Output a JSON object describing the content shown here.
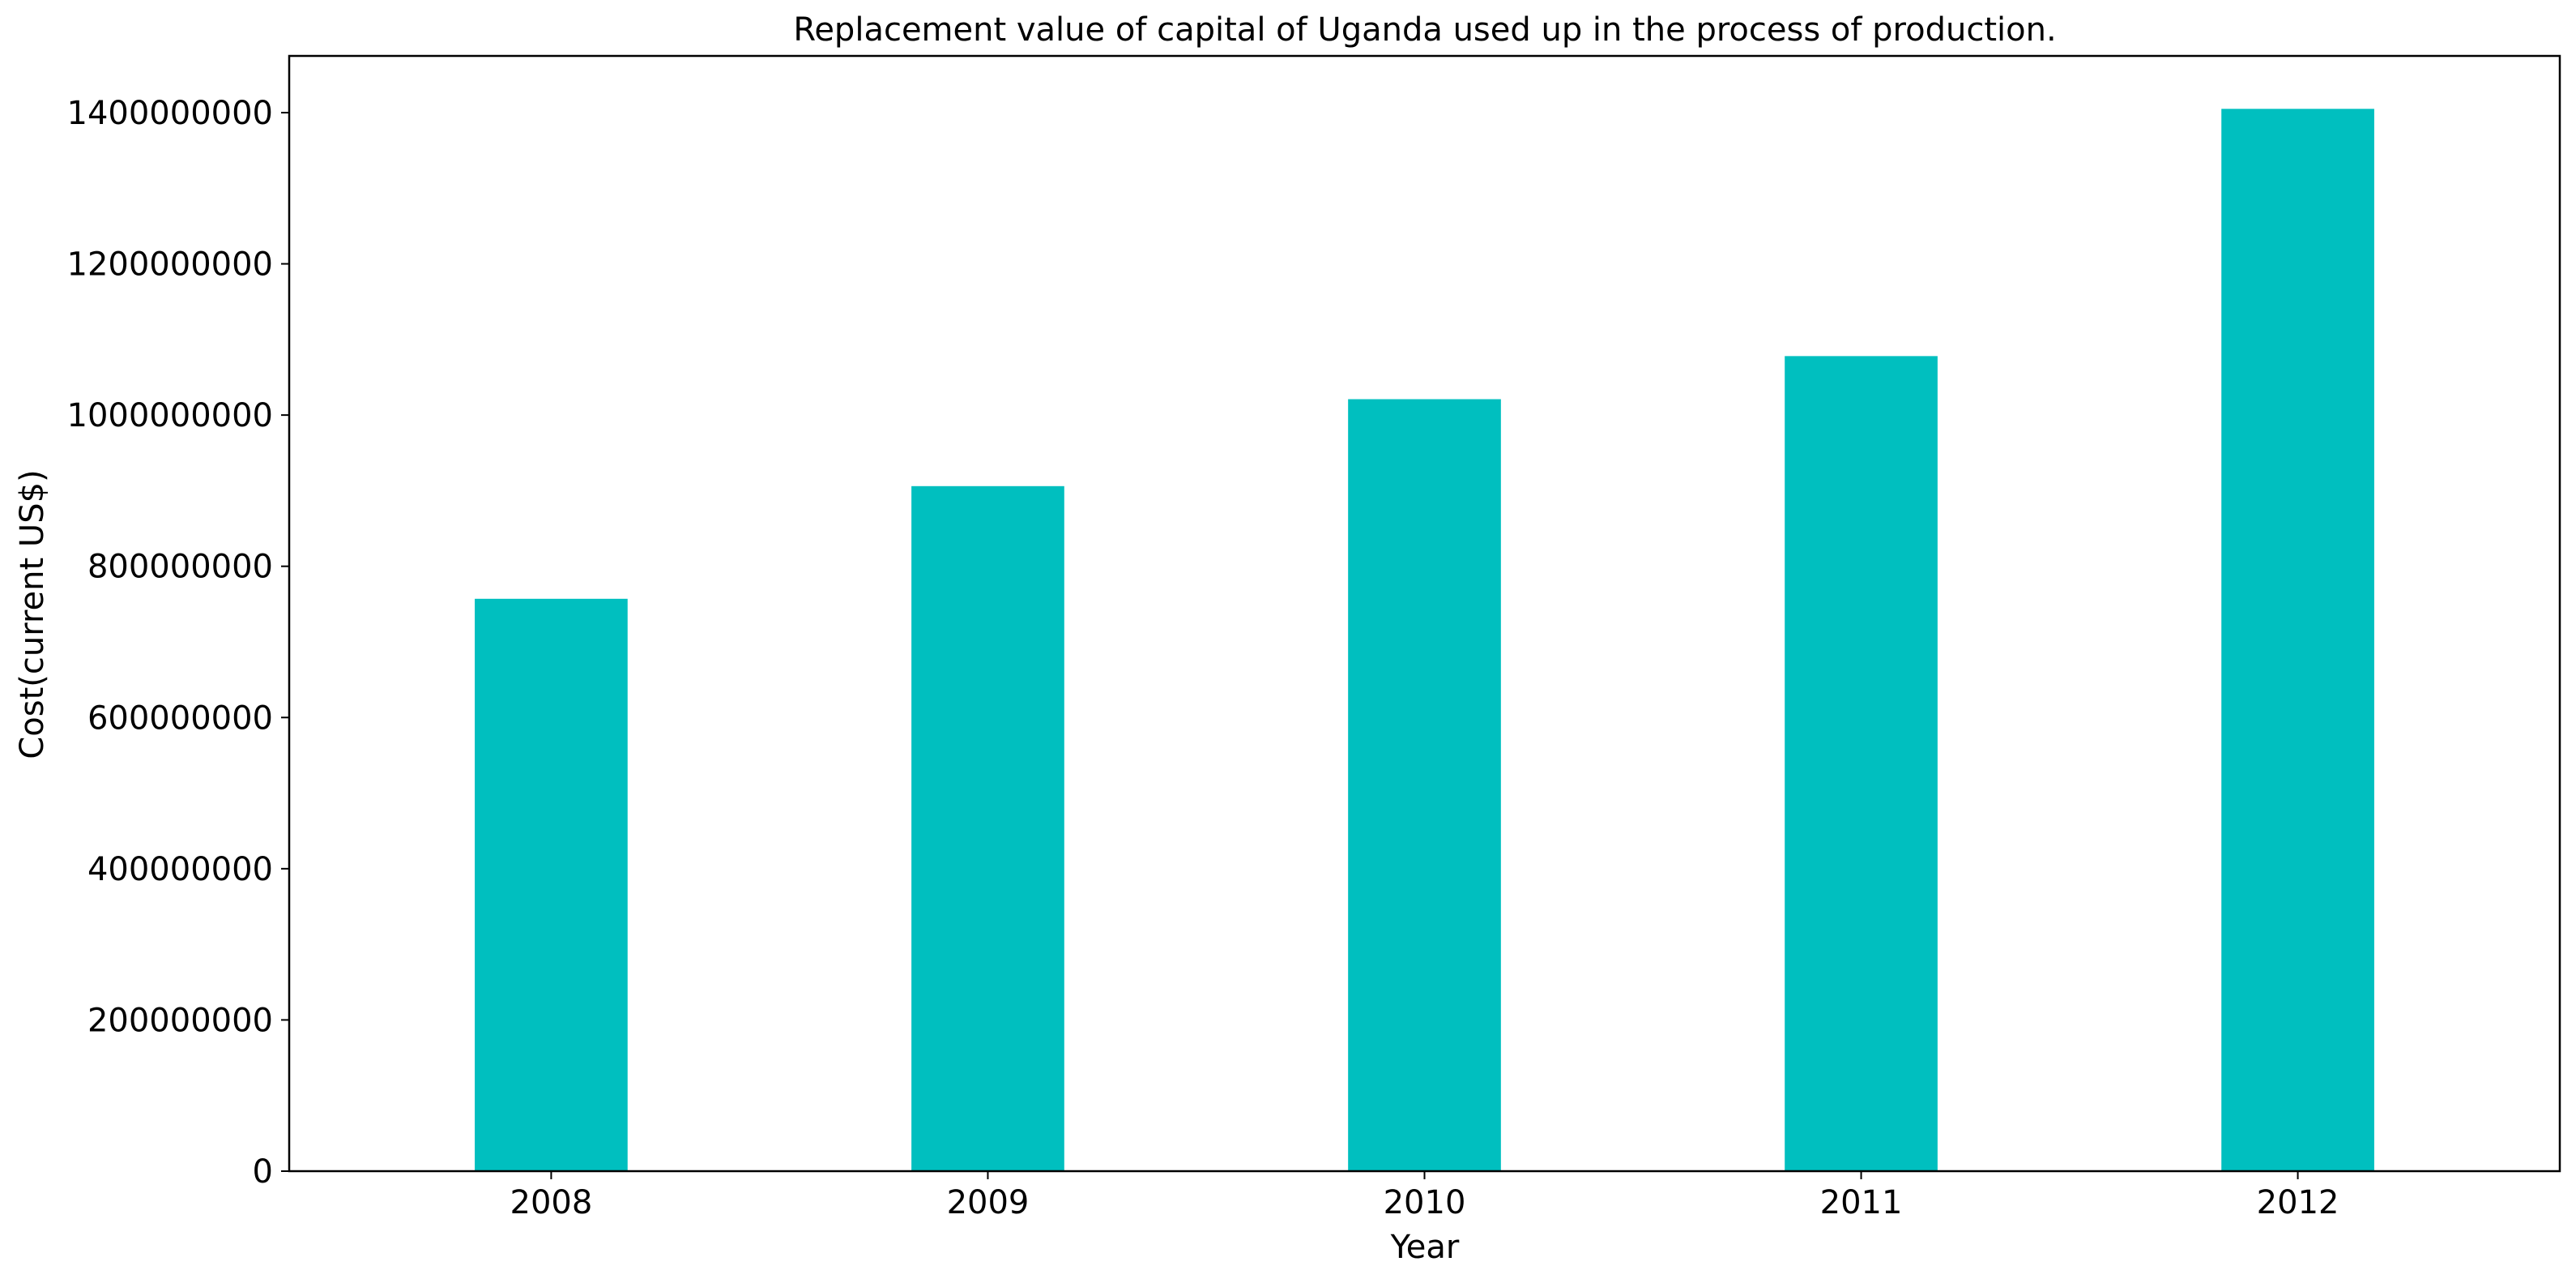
{
  "chart_data": {
    "type": "bar",
    "title": "Replacement value of capital of Uganda used up in the process of production.",
    "xlabel": "Year",
    "ylabel": "Cost(current US$)",
    "categories": [
      "2008",
      "2009",
      "2010",
      "2011",
      "2012"
    ],
    "values": [
      757000000,
      906000000,
      1021000000,
      1078000000,
      1405000000
    ],
    "ylim": [
      0,
      1475000000
    ],
    "yticks": [
      0,
      200000000,
      400000000,
      600000000,
      800000000,
      1000000000,
      1200000000,
      1400000000
    ],
    "ytick_labels": [
      "0",
      "200000000",
      "400000000",
      "600000000",
      "800000000",
      "1000000000",
      "1200000000",
      "1400000000"
    ],
    "bar_color": "#00bfbf",
    "grid": false,
    "legend": "none"
  }
}
